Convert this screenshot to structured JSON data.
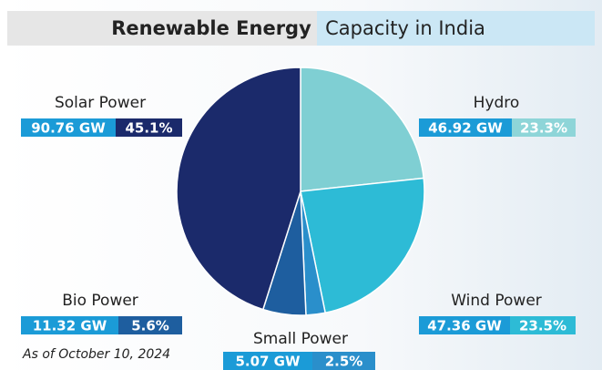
{
  "chart_data": {
    "type": "pie",
    "title": "Renewable Energy",
    "subtitle": "Capacity in India",
    "note": "As of October 10, 2024",
    "categories": [
      "Hydro",
      "Wind Power",
      "Small Power",
      "Bio Power",
      "Solar Power"
    ],
    "values": [
      23.3,
      23.5,
      2.5,
      5.6,
      45.1
    ],
    "value_labels": [
      "23.3%",
      "23.5%",
      "2.5%",
      "5.6%",
      "45.1%"
    ],
    "capacity": [
      46.92,
      47.36,
      5.07,
      11.32,
      90.76
    ],
    "capacity_labels": [
      "46.92 GW",
      "47.36 GW",
      "5.07 GW",
      "11.32 GW",
      "90.76 GW"
    ],
    "colors": [
      "#7fcfd3",
      "#2dbbd6",
      "#2a8fcb",
      "#1e5e9f",
      "#1b2a6b"
    ]
  }
}
